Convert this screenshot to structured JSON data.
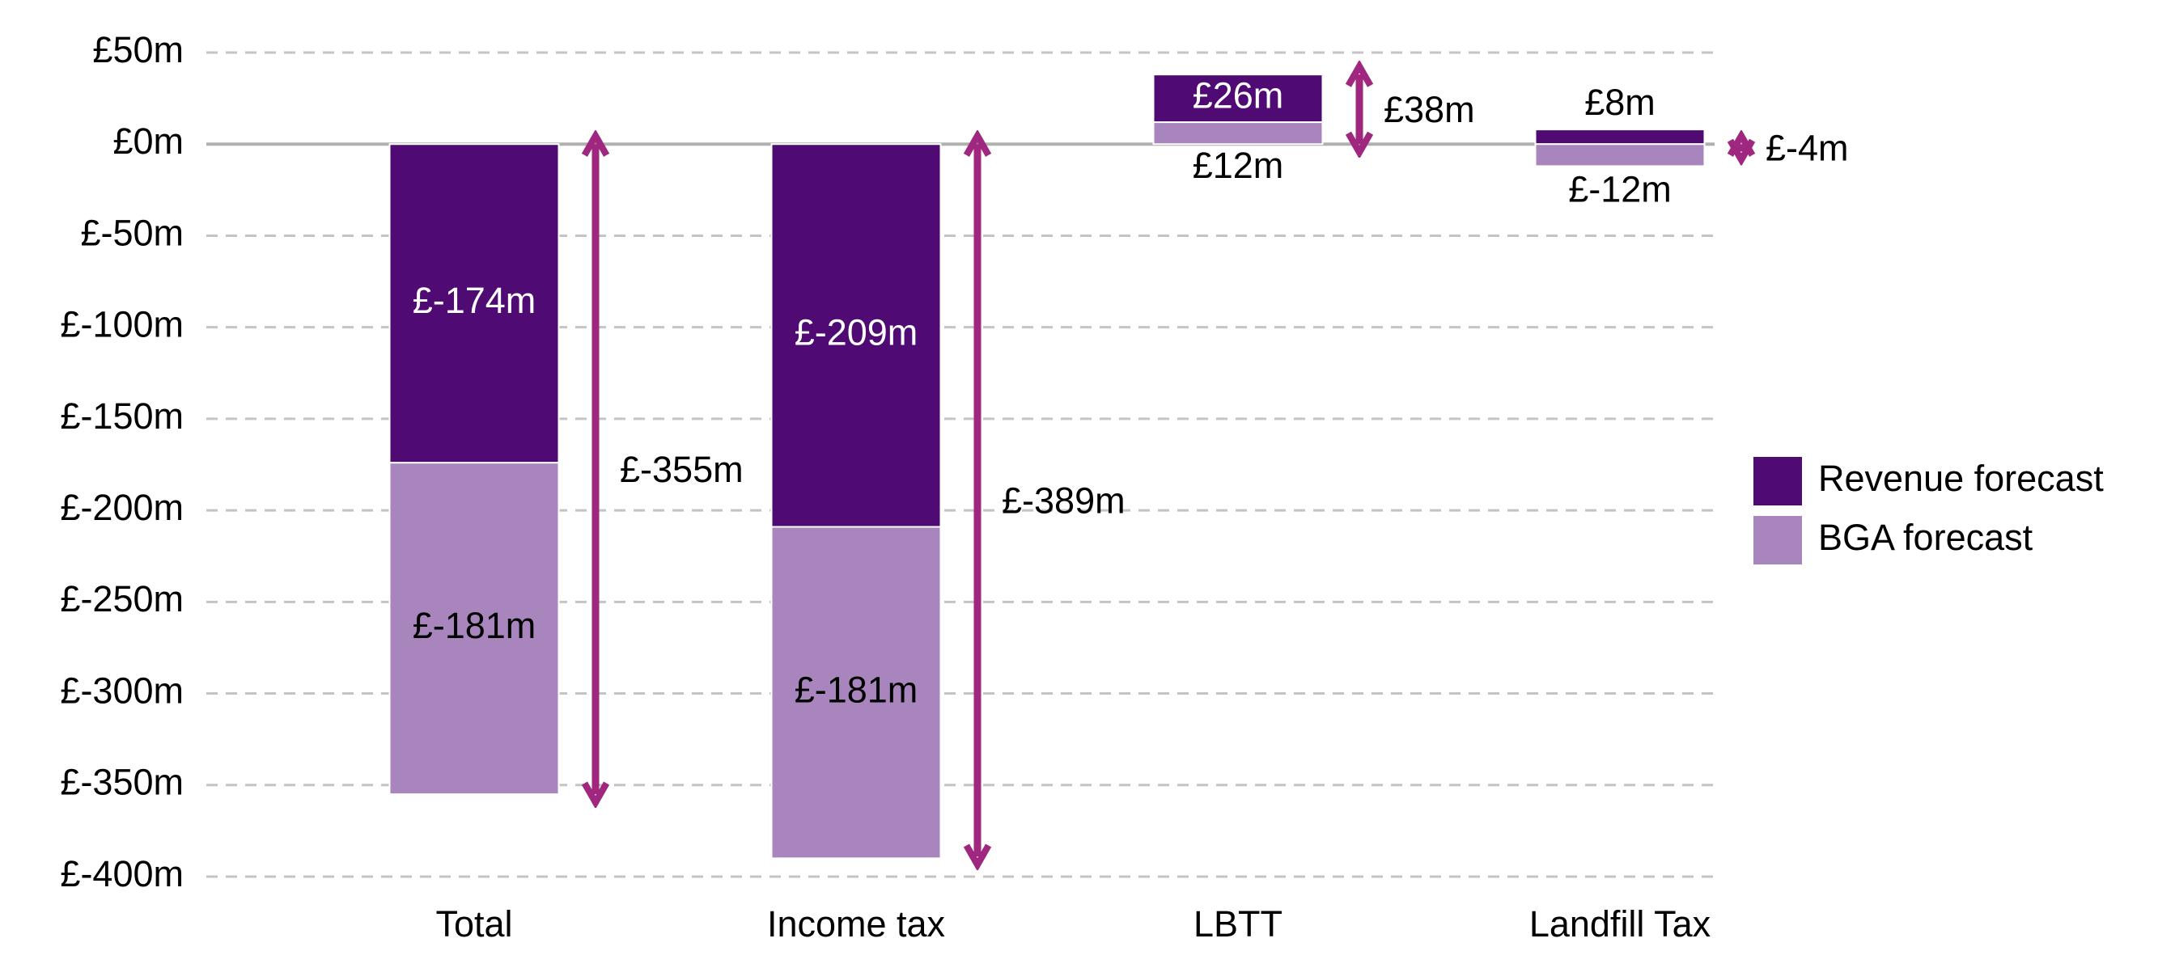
{
  "chart_data": {
    "type": "stacked-bar",
    "categories": [
      "Total",
      "Income tax",
      "LBTT",
      "Landfill Tax"
    ],
    "series": [
      {
        "name": "Revenue forecast",
        "color": "#4f0a73",
        "values": [
          -174,
          -209,
          26,
          8
        ],
        "value_labels": [
          "£-174m",
          "£-209m",
          "£26m",
          "£8m"
        ]
      },
      {
        "name": "BGA forecast",
        "color": "#a886bd",
        "values": [
          -181,
          -181,
          12,
          -12
        ],
        "value_labels": [
          "£-181m",
          "£-181m",
          "£12m",
          "£-12m"
        ]
      }
    ],
    "totals": {
      "color": "#a0277f",
      "values": [
        -355,
        -389,
        38,
        -4
      ],
      "value_labels": [
        "£-355m",
        "£-389m",
        "£38m",
        "£-4m"
      ]
    },
    "ylim": [
      -400,
      50
    ],
    "yticks": [
      {
        "value": 50,
        "label": "£50m"
      },
      {
        "value": 0,
        "label": "£0m"
      },
      {
        "value": -50,
        "label": "£-50m"
      },
      {
        "value": -100,
        "label": "£-100m"
      },
      {
        "value": -150,
        "label": "£-150m"
      },
      {
        "value": -200,
        "label": "£-200m"
      },
      {
        "value": -250,
        "label": "£-250m"
      },
      {
        "value": -300,
        "label": "£-300m"
      },
      {
        "value": -350,
        "label": "£-350m"
      },
      {
        "value": -400,
        "label": "£-400m"
      }
    ],
    "grid": true,
    "legend": "right"
  }
}
